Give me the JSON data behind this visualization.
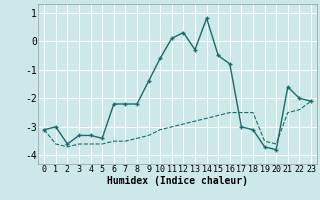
{
  "xlabel": "Humidex (Indice chaleur)",
  "background_color": "#cce8e8",
  "grid_color": "#ffffff",
  "line_color": "#1a6b6b",
  "xlim": [
    -0.5,
    23.5
  ],
  "ylim": [
    -4.3,
    1.3
  ],
  "yticks": [
    1,
    0,
    -1,
    -2,
    -3,
    -4
  ],
  "xticks": [
    0,
    1,
    2,
    3,
    4,
    5,
    6,
    7,
    8,
    9,
    10,
    11,
    12,
    13,
    14,
    15,
    16,
    17,
    18,
    19,
    20,
    21,
    22,
    23
  ],
  "series1_x": [
    0,
    1,
    2,
    3,
    4,
    5,
    6,
    7,
    8,
    9,
    10,
    11,
    12,
    13,
    14,
    15,
    16,
    17,
    18,
    19,
    20,
    21,
    22,
    23
  ],
  "series1_y": [
    -3.1,
    -3.0,
    -3.6,
    -3.3,
    -3.3,
    -3.4,
    -2.2,
    -2.2,
    -2.2,
    -1.4,
    -0.6,
    0.1,
    0.3,
    -0.3,
    0.8,
    -0.5,
    -0.8,
    -3.0,
    -3.1,
    -3.7,
    -3.8,
    -1.6,
    -2.0,
    -2.1
  ],
  "series2_x": [
    0,
    1,
    2,
    3,
    4,
    5,
    6,
    7,
    8,
    9,
    10,
    11,
    12,
    13,
    14,
    15,
    16,
    17,
    18,
    19,
    20,
    21,
    22,
    23
  ],
  "series2_y": [
    -3.1,
    -3.6,
    -3.7,
    -3.6,
    -3.6,
    -3.6,
    -3.5,
    -3.5,
    -3.4,
    -3.3,
    -3.1,
    -3.0,
    -2.9,
    -2.8,
    -2.7,
    -2.6,
    -2.5,
    -2.5,
    -2.5,
    -3.5,
    -3.6,
    -2.5,
    -2.4,
    -2.1
  ],
  "font_family": "monospace",
  "xlabel_fontsize": 7,
  "tick_fontsize": 6,
  "linewidth1": 1.0,
  "linewidth2": 0.8
}
